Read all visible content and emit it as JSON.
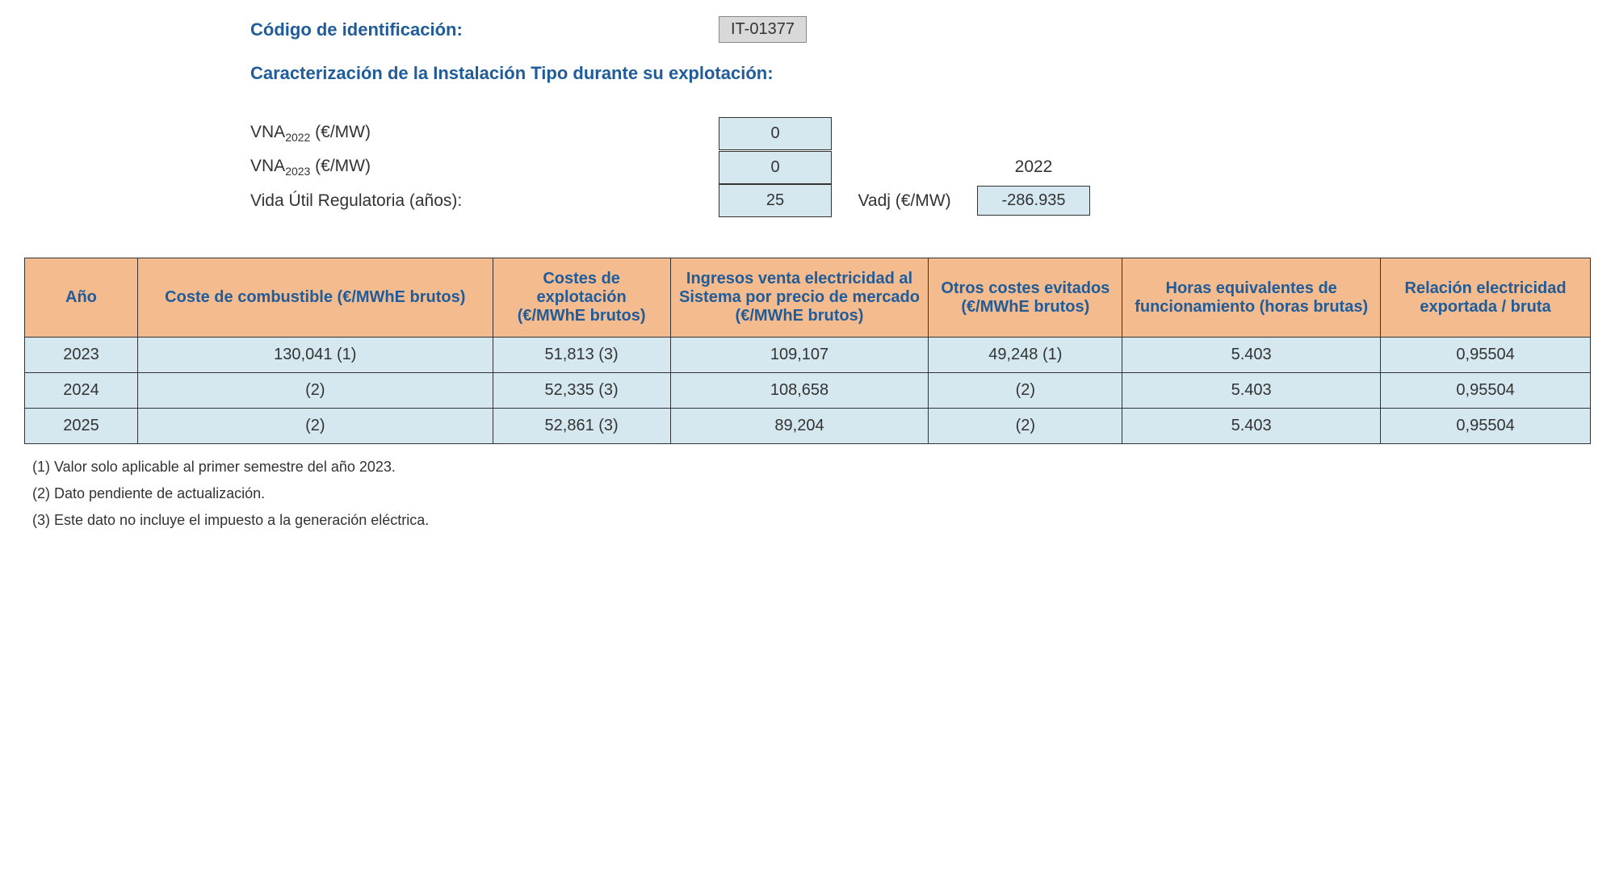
{
  "header": {
    "code_label": "Código de identificación:",
    "code_value": "IT-01377",
    "section_title": "Caracterización de la Instalación Tipo durante su explotación:"
  },
  "params": {
    "vna2022_label_prefix": "VNA",
    "vna2022_label_sub": "2022",
    "vna2022_label_suffix": " (€/MW)",
    "vna2022_value": "0",
    "vna2023_label_prefix": "VNA",
    "vna2023_label_sub": "2023",
    "vna2023_label_suffix": " (€/MW)",
    "vna2023_value": "0",
    "vida_label": "Vida Útil Regulatoria (años):",
    "vida_value": "25",
    "year_ref": "2022",
    "vadj_label": "Vadj (€/MW)",
    "vadj_value": "-286.935"
  },
  "table": {
    "columns": [
      "Año",
      "Coste de combustible (€/MWhE brutos)",
      "Costes de explotación (€/MWhE brutos)",
      "Ingresos venta electricidad al Sistema por precio de mercado (€/MWhE brutos)",
      "Otros costes evitados (€/MWhE brutos)",
      "Horas equivalentes de funcionamiento (horas brutas)",
      "Relación electricidad exportada / bruta"
    ],
    "rows": [
      [
        "2023",
        "130,041 (1)",
        "51,813 (3)",
        "109,107",
        "49,248 (1)",
        "5.403",
        "0,95504"
      ],
      [
        "2024",
        "(2)",
        "52,335 (3)",
        "108,658",
        "(2)",
        "5.403",
        "0,95504"
      ],
      [
        "2025",
        "(2)",
        "52,861 (3)",
        "89,204",
        "(2)",
        "5.403",
        "0,95504"
      ]
    ]
  },
  "footnotes": [
    "(1) Valor solo aplicable al primer semestre del año 2023.",
    "(2) Dato pendiente de actualización.",
    "(3) Este dato no incluye el impuesto a la generación eléctrica."
  ],
  "styling": {
    "header_color": "#1f5c99",
    "th_bg": "#f4bb8f",
    "td_bg": "#d5e8ef",
    "code_bg": "#d9d9d9",
    "border_color": "#333333",
    "body_fontsize": 20,
    "header_fontsize": 22
  }
}
